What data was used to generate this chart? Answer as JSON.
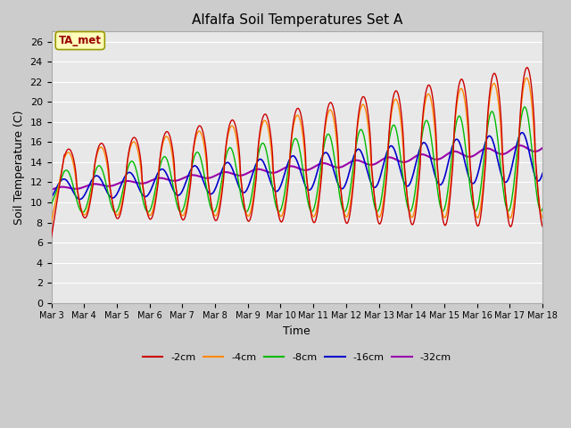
{
  "title": "Alfalfa Soil Temperatures Set A",
  "xlabel": "Time",
  "ylabel": "Soil Temperature (C)",
  "ylim": [
    0,
    27
  ],
  "yticks": [
    0,
    2,
    4,
    6,
    8,
    10,
    12,
    14,
    16,
    18,
    20,
    22,
    24,
    26
  ],
  "colors": {
    "-2cm": "#cc0000",
    "-4cm": "#ff8800",
    "-8cm": "#00bb00",
    "-16cm": "#0000cc",
    "-32cm": "#9900aa"
  },
  "fig_bg": "#cccccc",
  "plot_bg": "#e8e8e8",
  "grid_color": "#ffffff",
  "legend_label": "TA_met",
  "legend_box_facecolor": "#ffffbb",
  "legend_text_color": "#990000",
  "legend_edge_color": "#999900"
}
